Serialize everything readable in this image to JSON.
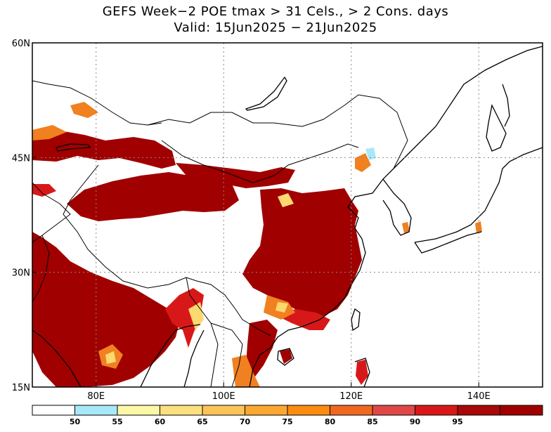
{
  "title": {
    "line1": "GEFS Week−2 POE tmax > 31 Cels., > 2 Cons. days",
    "line2": "Valid: 15Jun2025 − 21Jun2025"
  },
  "map": {
    "lon_range": [
      70,
      150
    ],
    "lat_range": [
      15,
      60
    ],
    "lat_ticks": [
      {
        "value": 60,
        "label": "60N"
      },
      {
        "value": 45,
        "label": "45N"
      },
      {
        "value": 30,
        "label": "30N"
      },
      {
        "value": 15,
        "label": "15N"
      }
    ],
    "lon_ticks": [
      {
        "value": 80,
        "label": "80E"
      },
      {
        "value": 100,
        "label": "100E"
      },
      {
        "value": 120,
        "label": "120E"
      },
      {
        "value": 140,
        "label": "140E"
      }
    ],
    "grid": true
  },
  "colorbar": {
    "levels": [
      {
        "label": "",
        "color": "#ffffff"
      },
      {
        "label": "50",
        "color": "#a8e8f8"
      },
      {
        "label": "55",
        "color": "#fcf8a8"
      },
      {
        "label": "60",
        "color": "#fce080"
      },
      {
        "label": "65",
        "color": "#fcc458"
      },
      {
        "label": "70",
        "color": "#fca830"
      },
      {
        "label": "75",
        "color": "#fc8c10"
      },
      {
        "label": "80",
        "color": "#f06820"
      },
      {
        "label": "85",
        "color": "#e04848"
      },
      {
        "label": "90",
        "color": "#d81818"
      },
      {
        "label": "95",
        "color": "#a80808"
      }
    ],
    "last_color": "#a00000"
  },
  "colors": {
    "dark_red": "#a00000",
    "red": "#d81818",
    "orange": "#f08020",
    "yellow": "#fcd870",
    "cyan": "#a8e8f8"
  }
}
